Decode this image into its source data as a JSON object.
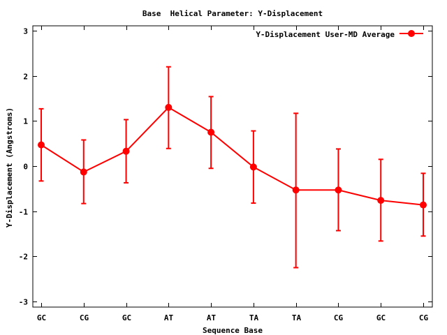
{
  "chart_data": {
    "type": "line",
    "title": "Base  Helical Parameter: Y-Displacement",
    "xlabel": "Sequence Base",
    "ylabel": "Y-Displacement (Angstroms)",
    "ylim": [
      -3.1,
      3.1
    ],
    "yticks": [
      "3",
      "2",
      "1",
      "0",
      "-1",
      "-2",
      "-3"
    ],
    "ytick_values": [
      3,
      2,
      1,
      0,
      -1,
      -2,
      -3
    ],
    "categories": [
      "GC",
      "CG",
      "GC",
      "AT",
      "AT",
      "TA",
      "TA",
      "CG",
      "GC",
      "CG"
    ],
    "grid": false,
    "legend_position": "top-right",
    "series": [
      {
        "name": "Y-Displacement User-MD Average",
        "color": "#ff0000",
        "values": [
          0.47,
          -0.13,
          0.33,
          1.3,
          0.75,
          -0.02,
          -0.53,
          -0.53,
          -0.76,
          -0.86
        ],
        "error_low": [
          -0.33,
          -0.83,
          -0.37,
          0.39,
          -0.05,
          -0.82,
          -2.25,
          -1.43,
          -1.66,
          -1.55
        ],
        "error_high": [
          1.27,
          0.58,
          1.03,
          2.2,
          1.54,
          0.78,
          1.17,
          0.38,
          0.15,
          -0.16
        ]
      }
    ]
  }
}
